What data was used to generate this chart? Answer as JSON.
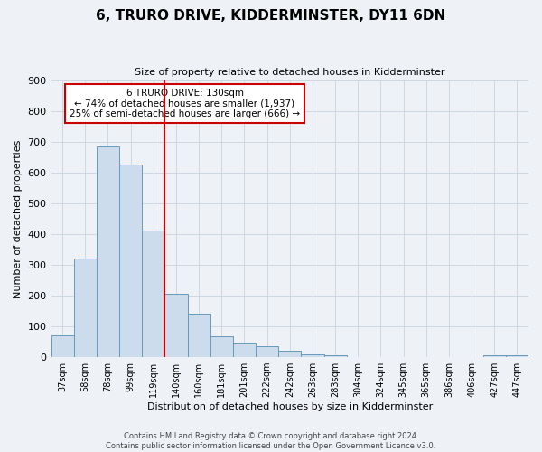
{
  "title": "6, TRURO DRIVE, KIDDERMINSTER, DY11 6DN",
  "subtitle": "Size of property relative to detached houses in Kidderminster",
  "xlabel": "Distribution of detached houses by size in Kidderminster",
  "ylabel": "Number of detached properties",
  "categories": [
    "37sqm",
    "58sqm",
    "78sqm",
    "99sqm",
    "119sqm",
    "140sqm",
    "160sqm",
    "181sqm",
    "201sqm",
    "222sqm",
    "242sqm",
    "263sqm",
    "283sqm",
    "304sqm",
    "324sqm",
    "345sqm",
    "365sqm",
    "386sqm",
    "406sqm",
    "427sqm",
    "447sqm"
  ],
  "values": [
    70,
    320,
    685,
    625,
    410,
    205,
    140,
    68,
    47,
    36,
    22,
    10,
    5,
    0,
    0,
    0,
    0,
    0,
    0,
    5,
    5
  ],
  "bar_color": "#ccdcec",
  "bar_edge_color": "#6699bb",
  "vline_color": "#cc0000",
  "annotation_title": "6 TRURO DRIVE: 130sqm",
  "annotation_line1": "← 74% of detached houses are smaller (1,937)",
  "annotation_line2": "25% of semi-detached houses are larger (666) →",
  "annotation_box_color": "#ffffff",
  "annotation_box_edge": "#cc0000",
  "ylim": [
    0,
    900
  ],
  "yticks": [
    0,
    100,
    200,
    300,
    400,
    500,
    600,
    700,
    800,
    900
  ],
  "footer1": "Contains HM Land Registry data © Crown copyright and database right 2024.",
  "footer2": "Contains public sector information licensed under the Open Government Licence v3.0.",
  "bg_color": "#eef2f7",
  "plot_bg_color": "#eef2f7",
  "grid_color": "#c8d4e0"
}
